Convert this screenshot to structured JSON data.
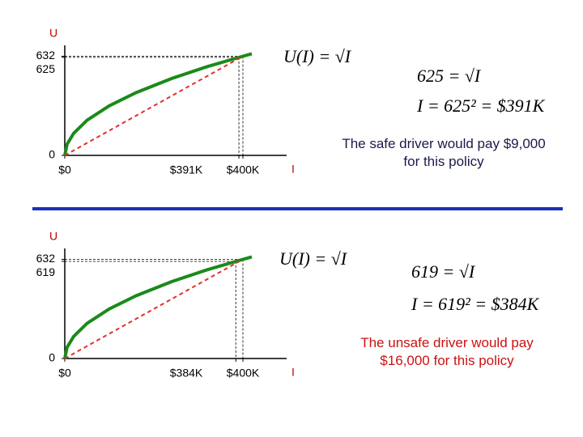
{
  "chart_data": [
    {
      "type": "line",
      "y_label": "U",
      "x_label": "I",
      "xlim": [
        0,
        480000
      ],
      "ylim": [
        0,
        650
      ],
      "xticks": [
        {
          "value": 0,
          "label": "$0"
        },
        {
          "value": 391000,
          "label": "$391K"
        },
        {
          "value": 400000,
          "label": "$400K"
        }
      ],
      "yticks": [
        0,
        625,
        632
      ],
      "series": [
        {
          "color": "#1a8a1a",
          "x": [
            0,
            5000,
            20000,
            50000,
            100000,
            160000,
            240000,
            320000,
            400000,
            420000
          ],
          "values": [
            0,
            71,
            141,
            224,
            316,
            400,
            490,
            566,
            632,
            648
          ]
        },
        {
          "color": "#e03030",
          "dashed": true,
          "x": [
            0,
            400000
          ],
          "values": [
            0,
            632
          ]
        }
      ],
      "points": [
        {
          "x": 391000,
          "y": 625
        },
        {
          "x": 400000,
          "y": 632
        }
      ],
      "equations": [
        "U(I) = √I",
        "625 = √I",
        "I = 625² = $391K"
      ],
      "note": "The safe driver would pay $9,000 for this policy",
      "note_color": "#1a1a4a"
    },
    {
      "type": "line",
      "y_label": "U",
      "x_label": "I",
      "xlim": [
        0,
        480000
      ],
      "ylim": [
        0,
        650
      ],
      "xticks": [
        {
          "value": 0,
          "label": "$0"
        },
        {
          "value": 384000,
          "label": "$384K"
        },
        {
          "value": 400000,
          "label": "$400K"
        }
      ],
      "yticks": [
        0,
        619,
        632
      ],
      "series": [
        {
          "color": "#1a8a1a",
          "x": [
            0,
            5000,
            20000,
            50000,
            100000,
            160000,
            240000,
            320000,
            400000,
            420000
          ],
          "values": [
            0,
            71,
            141,
            224,
            316,
            400,
            490,
            566,
            632,
            648
          ]
        },
        {
          "color": "#e03030",
          "dashed": true,
          "x": [
            0,
            400000
          ],
          "values": [
            0,
            632
          ]
        }
      ],
      "points": [
        {
          "x": 384000,
          "y": 619
        },
        {
          "x": 400000,
          "y": 632
        }
      ],
      "equations": [
        "U(I) = √I",
        "619 = √I",
        "I = 619² = $384K"
      ],
      "note": "The unsafe driver would pay $16,000 for this policy",
      "note_color": "#cc1111"
    }
  ]
}
